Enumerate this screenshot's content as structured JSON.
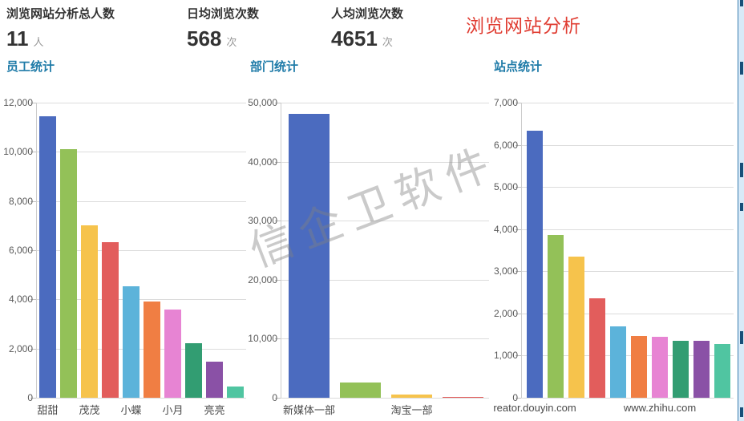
{
  "header": {
    "stats": [
      {
        "label": "浏览网站分析总人数",
        "value": "11",
        "unit": "人"
      },
      {
        "label": "日均浏览次数",
        "value": "568",
        "unit": "次"
      },
      {
        "label": "人均浏览次数",
        "value": "4651",
        "unit": "次"
      }
    ],
    "page_title": "浏览网站分析",
    "page_title_color": "#e03c31"
  },
  "watermark": {
    "text": "信企卫软件"
  },
  "palette": [
    "#4b6bbf",
    "#93c158",
    "#f6c34c",
    "#e25d5c",
    "#5cb3da",
    "#f07e43",
    "#e784d3",
    "#329d72",
    "#8a51a6",
    "#50c5a1"
  ],
  "section_title_color": "#1f7ba8",
  "chart_data": [
    {
      "type": "bar",
      "title": "员工统计",
      "values": [
        11450,
        10100,
        7000,
        6320,
        4520,
        3920,
        3600,
        2230,
        1480,
        460
      ],
      "ylim": [
        0,
        12000
      ],
      "ytick_step": 2000,
      "grid": true,
      "legend": "none",
      "x_labels": [
        {
          "bar": 0,
          "text": "甜甜"
        },
        {
          "bar": 2,
          "text": "茂茂"
        },
        {
          "bar": 4,
          "text": "小蝶"
        },
        {
          "bar": 6,
          "text": "小月"
        },
        {
          "bar": 8,
          "text": "亮亮"
        }
      ]
    },
    {
      "type": "bar",
      "title": "部门统计",
      "values": [
        48100,
        2600,
        500,
        180
      ],
      "ylim": [
        0,
        50000
      ],
      "ytick_step": 10000,
      "grid": true,
      "legend": "none",
      "x_labels": [
        {
          "bar": 0,
          "text": "新媒体一部"
        },
        {
          "bar": 2,
          "text": "淘宝一部"
        }
      ]
    },
    {
      "type": "bar",
      "title": "站点统计",
      "values": [
        6330,
        3870,
        3340,
        2350,
        1690,
        1460,
        1450,
        1360,
        1350,
        1280
      ],
      "ylim": [
        0,
        7000
      ],
      "ytick_step": 1000,
      "grid": true,
      "legend": "none",
      "x_labels": [
        {
          "bar": 0,
          "text": "reator.douyin.com"
        },
        {
          "bar": 6,
          "text": "www.zhihu.com"
        }
      ]
    }
  ]
}
